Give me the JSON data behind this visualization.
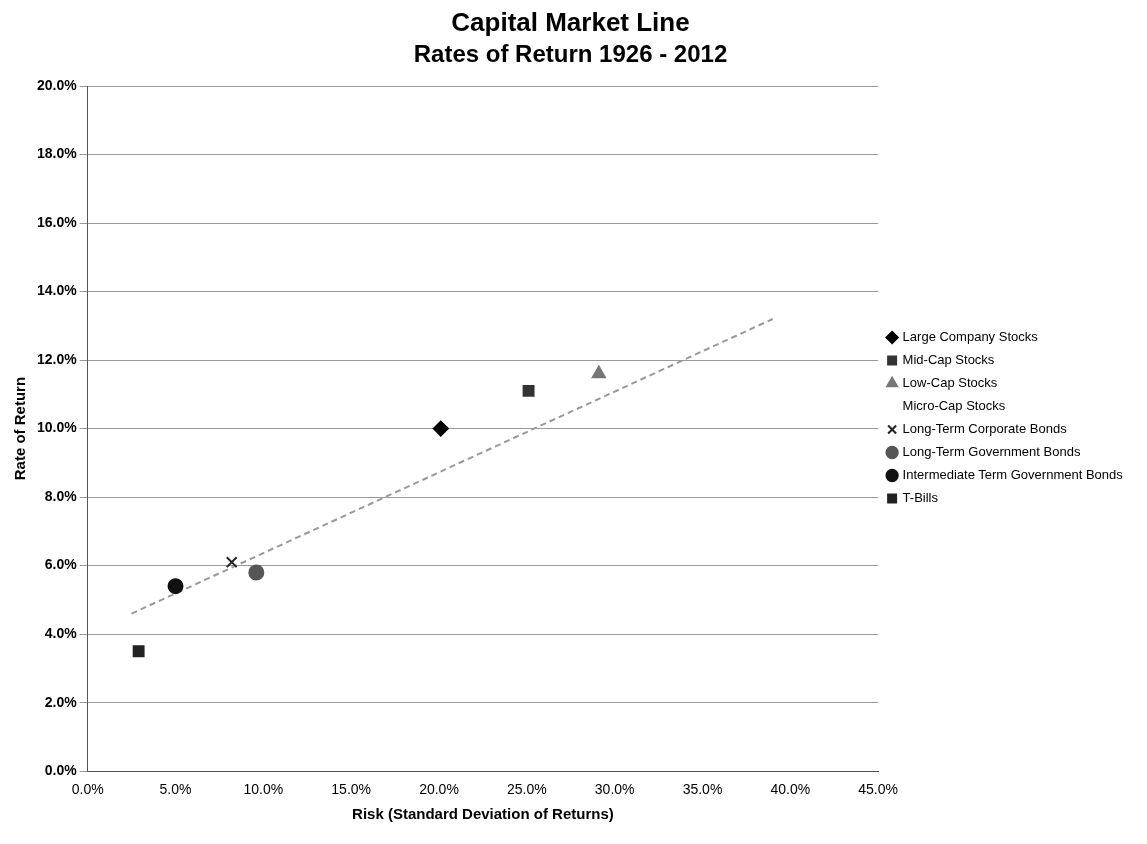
{
  "chart_data": {
    "type": "scatter",
    "title": "Capital Market Line",
    "subtitle": "Rates of Return 1926 - 2012",
    "xlabel": "Risk (Standard Deviation of Returns)",
    "ylabel": "Rate of Return",
    "xlim": [
      0,
      45
    ],
    "xticks": [
      {
        "value": 0,
        "label": "0.0%"
      },
      {
        "value": 5,
        "label": "5.0%"
      },
      {
        "value": 10,
        "label": "10.0%"
      },
      {
        "value": 15,
        "label": "15.0%"
      },
      {
        "value": 20,
        "label": "20.0%"
      },
      {
        "value": 25,
        "label": "25.0%"
      },
      {
        "value": 30,
        "label": "30.0%"
      },
      {
        "value": 35,
        "label": "35.0%"
      },
      {
        "value": 40,
        "label": "40.0%"
      },
      {
        "value": 45,
        "label": "45.0%"
      }
    ],
    "ylim": [
      0,
      20
    ],
    "yticks": [
      {
        "value": 0,
        "label": "0.0%"
      },
      {
        "value": 2,
        "label": "2.0%"
      },
      {
        "value": 4,
        "label": "4.0%"
      },
      {
        "value": 6,
        "label": "6.0%"
      },
      {
        "value": 8,
        "label": "8.0%"
      },
      {
        "value": 10,
        "label": "10.0%"
      },
      {
        "value": 12,
        "label": "12.0%"
      },
      {
        "value": 14,
        "label": "14.0%"
      },
      {
        "value": 16,
        "label": "16.0%"
      },
      {
        "value": 18,
        "label": "18.0%"
      },
      {
        "value": 20,
        "label": "20.0%"
      }
    ],
    "grid": "y",
    "legend": "right",
    "series": [
      {
        "name": "Large Company Stocks",
        "color": "#000000",
        "marker": "diamond",
        "x": [
          20.1
        ],
        "values": [
          10.0
        ]
      },
      {
        "name": "Mid-Cap Stocks",
        "color": "#333333",
        "marker": "square",
        "x": [
          25.1
        ],
        "values": [
          11.1
        ]
      },
      {
        "name": "Low-Cap Stocks",
        "color": "#777777",
        "marker": "triangle",
        "x": [
          29.1
        ],
        "values": [
          11.6
        ]
      },
      {
        "name": "Micro-Cap Stocks",
        "marker": "none",
        "x": [
          null
        ],
        "values": [
          null
        ]
      },
      {
        "name": "Long-Term Corporate Bonds",
        "color": "#222222",
        "marker": "cross",
        "x": [
          8.2
        ],
        "values": [
          6.1
        ]
      },
      {
        "name": "Long-Term Government Bonds",
        "color": "#555555",
        "marker": "circle",
        "x": [
          9.6
        ],
        "values": [
          5.8
        ]
      },
      {
        "name": "Intermediate Term Government Bonds",
        "color": "#111111",
        "marker": "circle",
        "x": [
          5.0
        ],
        "values": [
          5.4
        ]
      },
      {
        "name": "T-Bills",
        "color": "#222222",
        "marker": "square",
        "x": [
          2.9
        ],
        "values": [
          3.5
        ]
      },
      {
        "type": "line",
        "color": "#999999",
        "line_style": "dashed",
        "marker": "none",
        "x": [
          2.5,
          39
        ],
        "values": [
          4.6,
          13.2
        ]
      }
    ]
  }
}
